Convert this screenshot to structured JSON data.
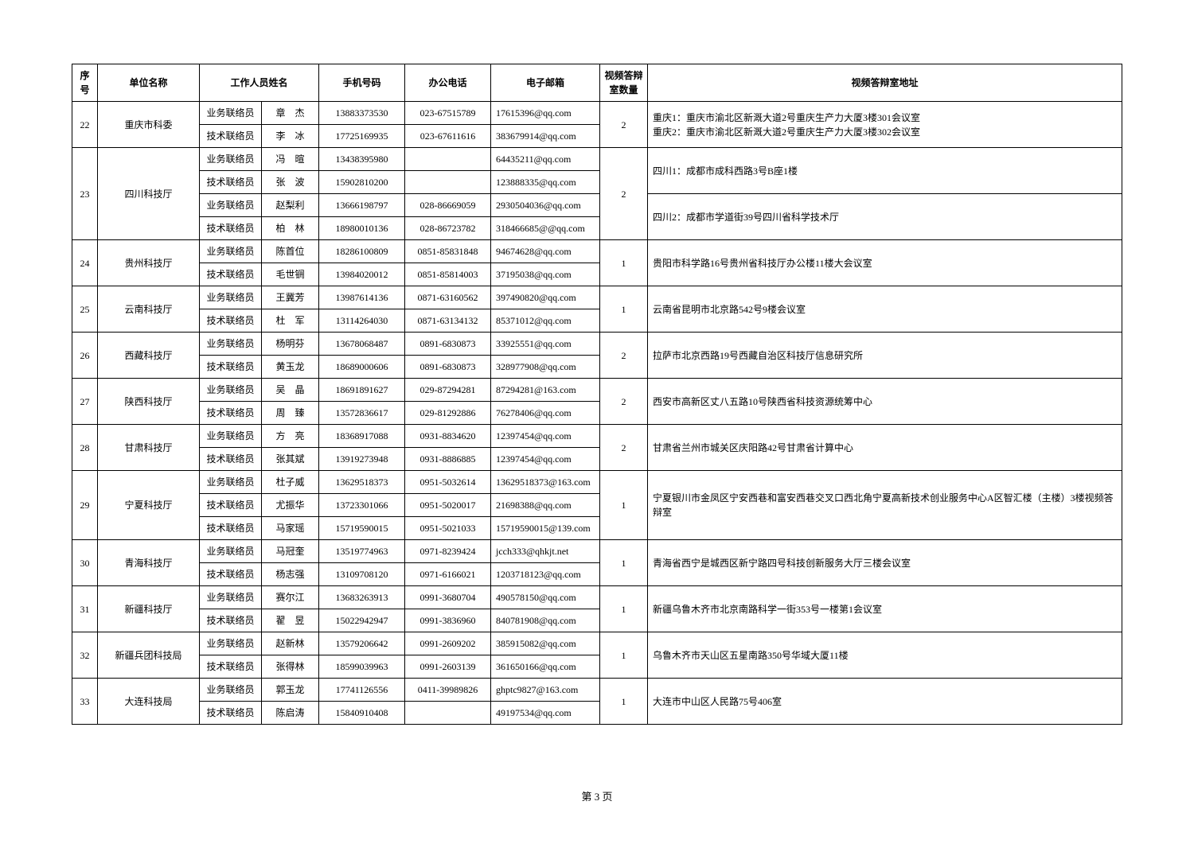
{
  "headers": {
    "seq": "序号",
    "unit": "单位名称",
    "staff": "工作人员姓名",
    "phone": "手机号码",
    "office": "办公电话",
    "email": "电子邮箱",
    "rooms": "视频答辩室数量",
    "addr": "视频答辩室地址"
  },
  "footer": "第 3 页",
  "groups": [
    {
      "seq": "22",
      "unit": "重庆市科委",
      "rooms": "2",
      "addr_rows": [
        "重庆1：重庆市渝北区新溉大道2号重庆生产力大厦3楼301会议室\n重庆2：重庆市渝北区新溉大道2号重庆生产力大厦3楼302会议室"
      ],
      "rows": [
        {
          "role": "业务联络员",
          "name": "章　杰",
          "phone": "13883373530",
          "office": "023-67515789",
          "email": "17615396@qq.com"
        },
        {
          "role": "技术联络员",
          "name": "李　冰",
          "phone": "17725169935",
          "office": "023-67611616",
          "email": "383679914@qq.com"
        }
      ]
    },
    {
      "seq": "23",
      "unit": "四川科技厅",
      "rooms": "2",
      "addr_rows": [
        "四川1：成都市成科西路3号B座1楼",
        "四川2：成都市学道街39号四川省科学技术厅"
      ],
      "rows": [
        {
          "role": "业务联络员",
          "name": "冯　暄",
          "phone": "13438395980",
          "office": "",
          "email": "64435211@qq.com"
        },
        {
          "role": "技术联络员",
          "name": "张　波",
          "phone": "15902810200",
          "office": "",
          "email": "123888335@qq.com"
        },
        {
          "role": "业务联络员",
          "name": "赵梨利",
          "phone": "13666198797",
          "office": "028-86669059",
          "email": "2930504036@qq.com"
        },
        {
          "role": "技术联络员",
          "name": "柏　林",
          "phone": "18980010136",
          "office": "028-86723782",
          "email": "318466685@@qq.com"
        }
      ]
    },
    {
      "seq": "24",
      "unit": "贵州科技厅",
      "rooms": "1",
      "addr_rows": [
        "贵阳市科学路16号贵州省科技厅办公楼11楼大会议室"
      ],
      "rows": [
        {
          "role": "业务联络员",
          "name": "陈首位",
          "phone": "18286100809",
          "office": "0851-85831848",
          "email": "94674628@qq.com"
        },
        {
          "role": "技术联络员",
          "name": "毛世锎",
          "phone": "13984020012",
          "office": "0851-85814003",
          "email": "37195038@qq.com"
        }
      ]
    },
    {
      "seq": "25",
      "unit": "云南科技厅",
      "rooms": "1",
      "addr_rows": [
        "云南省昆明市北京路542号9楼会议室"
      ],
      "rows": [
        {
          "role": "业务联络员",
          "name": "王冀芳",
          "phone": "13987614136",
          "office": "0871-63160562",
          "email": "397490820@qq.com"
        },
        {
          "role": "技术联络员",
          "name": "杜　军",
          "phone": "13114264030",
          "office": "0871-63134132",
          "email": "85371012@qq.com"
        }
      ]
    },
    {
      "seq": "26",
      "unit": "西藏科技厅",
      "rooms": "2",
      "addr_rows": [
        "拉萨市北京西路19号西藏自治区科技厅信息研究所"
      ],
      "rows": [
        {
          "role": "业务联络员",
          "name": "杨明芬",
          "phone": "13678068487",
          "office": "0891-6830873",
          "email": "33925551@qq.com"
        },
        {
          "role": "技术联络员",
          "name": "黄玉龙",
          "phone": "18689000606",
          "office": "0891-6830873",
          "email": "328977908@qq.com"
        }
      ]
    },
    {
      "seq": "27",
      "unit": "陕西科技厅",
      "rooms": "2",
      "addr_rows": [
        "西安市高新区丈八五路10号陕西省科技资源统筹中心"
      ],
      "rows": [
        {
          "role": "业务联络员",
          "name": "吴　晶",
          "phone": "18691891627",
          "office": "029-87294281",
          "email": "87294281@163.com"
        },
        {
          "role": "技术联络员",
          "name": "周　臻",
          "phone": "13572836617",
          "office": "029-81292886",
          "email": "76278406@qq.com"
        }
      ]
    },
    {
      "seq": "28",
      "unit": "甘肃科技厅",
      "rooms": "2",
      "addr_rows": [
        "甘肃省兰州市城关区庆阳路42号甘肃省计算中心"
      ],
      "rows": [
        {
          "role": "业务联络员",
          "name": "方　亮",
          "phone": "18368917088",
          "office": "0931-8834620",
          "email": "12397454@qq.com"
        },
        {
          "role": "技术联络员",
          "name": "张其斌",
          "phone": "13919273948",
          "office": "0931-8886885",
          "email": "12397454@qq.com"
        }
      ]
    },
    {
      "seq": "29",
      "unit": "宁夏科技厅",
      "rooms": "1",
      "addr_rows": [
        "宁夏银川市金凤区宁安西巷和富安西巷交叉口西北角宁夏高新技术创业服务中心A区智汇楼（主楼）3楼视频答辩室"
      ],
      "rows": [
        {
          "role": "业务联络员",
          "name": "杜子威",
          "phone": "13629518373",
          "office": "0951-5032614",
          "email": "13629518373@163.com"
        },
        {
          "role": "技术联络员",
          "name": "尤振华",
          "phone": "13723301066",
          "office": "0951-5020017",
          "email": "21698388@qq.com"
        },
        {
          "role": "技术联络员",
          "name": "马家瑶",
          "phone": "15719590015",
          "office": "0951-5021033",
          "email": "15719590015@139.com"
        }
      ]
    },
    {
      "seq": "30",
      "unit": "青海科技厅",
      "rooms": "1",
      "addr_rows": [
        "青海省西宁是城西区新宁路四号科技创新服务大厅三楼会议室"
      ],
      "rows": [
        {
          "role": "业务联络员",
          "name": "马冠奎",
          "phone": "13519774963",
          "office": "0971-8239424",
          "email": "jcch333@qhkjt.net"
        },
        {
          "role": "技术联络员",
          "name": "杨志强",
          "phone": "13109708120",
          "office": "0971-6166021",
          "email": "1203718123@qq.com"
        }
      ]
    },
    {
      "seq": "31",
      "unit": "新疆科技厅",
      "rooms": "1",
      "addr_rows": [
        "新疆乌鲁木齐市北京南路科学一街353号一楼第1会议室"
      ],
      "rows": [
        {
          "role": "业务联络员",
          "name": "赛尔江",
          "phone": "13683263913",
          "office": "0991-3680704",
          "email": "490578150@qq.com"
        },
        {
          "role": "技术联络员",
          "name": "翟　昱",
          "phone": "15022942947",
          "office": "0991-3836960",
          "email": "840781908@qq.com"
        }
      ]
    },
    {
      "seq": "32",
      "unit": "新疆兵团科技局",
      "rooms": "1",
      "addr_rows": [
        "乌鲁木齐市天山区五星南路350号华域大厦11楼"
      ],
      "rows": [
        {
          "role": "业务联络员",
          "name": "赵新林",
          "phone": "13579206642",
          "office": "0991-2609202",
          "email": "385915082@qq.com"
        },
        {
          "role": "技术联络员",
          "name": "张得林",
          "phone": "18599039963",
          "office": "0991-2603139",
          "email": "361650166@qq.com"
        }
      ]
    },
    {
      "seq": "33",
      "unit": "大连科技局",
      "rooms": "1",
      "addr_rows": [
        "大连市中山区人民路75号406室"
      ],
      "rows": [
        {
          "role": "业务联络员",
          "name": "郭玉龙",
          "phone": "17741126556",
          "office": "0411-39989826",
          "email": "ghptc9827@163.com"
        },
        {
          "role": "技术联络员",
          "name": "陈启涛",
          "phone": "15840910408",
          "office": "",
          "email": "49197534@qq.com"
        }
      ]
    }
  ]
}
